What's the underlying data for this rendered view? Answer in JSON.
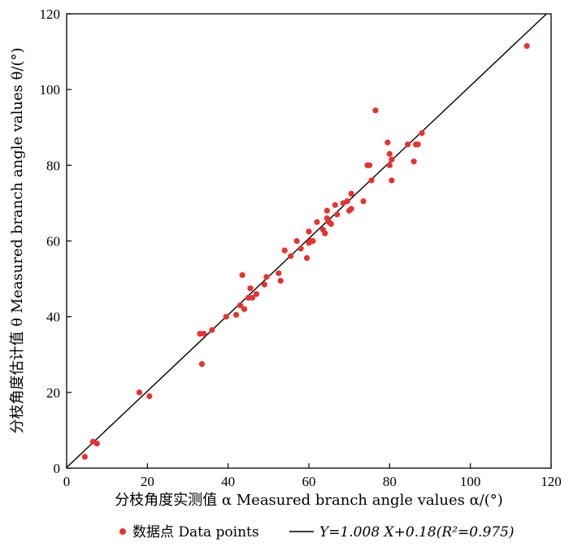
{
  "chart_data": {
    "type": "scatter",
    "xlabel": "分枝角度实测值 α Measured branch angle values α/(°)",
    "ylabel": "分枝角度估计值 θ Measured branch angle values θ/(°)",
    "xlim": [
      0,
      120
    ],
    "ylim": [
      0,
      120
    ],
    "xticks": [
      "0",
      "20",
      "40",
      "60",
      "80",
      "100",
      "120"
    ],
    "yticks": [
      "0",
      "20",
      "40",
      "60",
      "80",
      "100",
      "120"
    ],
    "grid": false,
    "legend_position": "bottom",
    "series": [
      {
        "name": "数据点 Data points",
        "color": "#e8322f",
        "points": [
          [
            4.5,
            3
          ],
          [
            6.5,
            7
          ],
          [
            7.5,
            6.5
          ],
          [
            18,
            20
          ],
          [
            20.5,
            19
          ],
          [
            33,
            35.5
          ],
          [
            34,
            35.5
          ],
          [
            33.5,
            27.5
          ],
          [
            36,
            36.5
          ],
          [
            39.5,
            40
          ],
          [
            42,
            40.5
          ],
          [
            43,
            43
          ],
          [
            44,
            42
          ],
          [
            45,
            45
          ],
          [
            45.5,
            47.5
          ],
          [
            46,
            45
          ],
          [
            47,
            46
          ],
          [
            43.5,
            51
          ],
          [
            49,
            48.5
          ],
          [
            49.5,
            50.5
          ],
          [
            52.5,
            51.5
          ],
          [
            53,
            49.5
          ],
          [
            54,
            57.5
          ],
          [
            55.5,
            56
          ],
          [
            57,
            60
          ],
          [
            58,
            58
          ],
          [
            59.5,
            55.5
          ],
          [
            60,
            59.5
          ],
          [
            60.5,
            60
          ],
          [
            61,
            60
          ],
          [
            60,
            62.5
          ],
          [
            62,
            65
          ],
          [
            63.5,
            63
          ],
          [
            64,
            62
          ],
          [
            64.5,
            66
          ],
          [
            64.5,
            68
          ],
          [
            65,
            65
          ],
          [
            65.5,
            64.5
          ],
          [
            66.5,
            69.5
          ],
          [
            67,
            67
          ],
          [
            68.5,
            70
          ],
          [
            69.5,
            70.5
          ],
          [
            70,
            68
          ],
          [
            70.5,
            68.5
          ],
          [
            70.5,
            72.5
          ],
          [
            73.5,
            70.5
          ],
          [
            74.5,
            80
          ],
          [
            75,
            80
          ],
          [
            75.5,
            76
          ],
          [
            76.5,
            94.5
          ],
          [
            79.5,
            86
          ],
          [
            80,
            80
          ],
          [
            80,
            83
          ],
          [
            80.5,
            81.5
          ],
          [
            80.5,
            76
          ],
          [
            84.5,
            85.5
          ],
          [
            86,
            81
          ],
          [
            86.5,
            85.5
          ],
          [
            87,
            85.5
          ],
          [
            88,
            88.5
          ],
          [
            114,
            111.5
          ]
        ]
      }
    ],
    "fit_line": {
      "name": "Y=1.008 X+0.18(R²=0.975)",
      "slope": 1.008,
      "intercept": 0.18,
      "r2": 0.975,
      "color": "#000000"
    },
    "legend": {
      "points_label": "数据点 Data points",
      "line_label": "Y=1.008 X+0.18(R²=0.975)"
    }
  }
}
